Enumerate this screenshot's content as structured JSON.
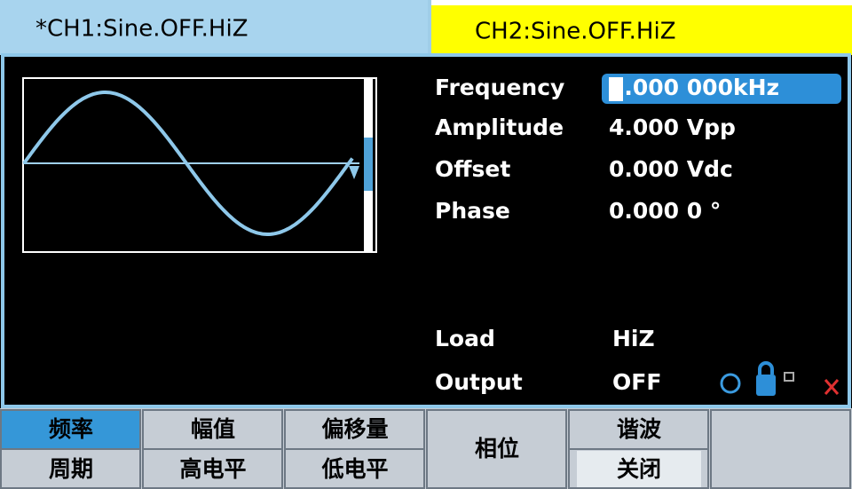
{
  "tabs": [
    "*CH1:Sine.OFF.HiZ",
    "CH2:Sine.OFF.HiZ"
  ],
  "parameters": [
    {
      "label": "Frequency",
      "value": "1.000 000kHz"
    },
    {
      "label": "Amplitude",
      "value": "4.000 Vpp"
    },
    {
      "label": "Offset",
      "value": "0.000 Vdc"
    },
    {
      "label": "Phase",
      "value": "0.000 0 °"
    }
  ],
  "status": [
    {
      "label": "Load",
      "value": "HiZ"
    },
    {
      "label": "Output",
      "value": "OFF"
    }
  ],
  "menu": [
    {
      "top": "频率",
      "bottom": "周期"
    },
    {
      "top": "幅值",
      "bottom": "高电平"
    },
    {
      "top": "偏移量",
      "bottom": "低电平"
    },
    {
      "label": "相位"
    },
    {
      "top": "谐波",
      "bottom": "关闭"
    }
  ]
}
